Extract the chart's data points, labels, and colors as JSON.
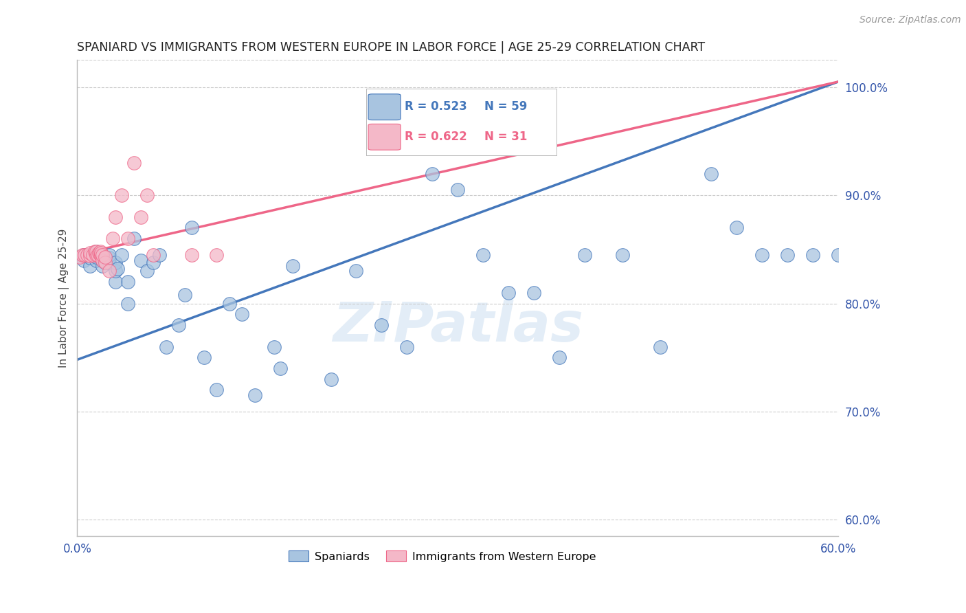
{
  "title": "SPANIARD VS IMMIGRANTS FROM WESTERN EUROPE IN LABOR FORCE | AGE 25-29 CORRELATION CHART",
  "source": "Source: ZipAtlas.com",
  "ylabel": "In Labor Force | Age 25-29",
  "xlim": [
    0.0,
    0.6
  ],
  "ylim": [
    0.585,
    1.025
  ],
  "xticks": [
    0.0,
    0.1,
    0.2,
    0.3,
    0.4,
    0.5,
    0.6
  ],
  "xticklabels": [
    "0.0%",
    "",
    "",
    "",
    "",
    "",
    "60.0%"
  ],
  "yticks_right": [
    0.6,
    0.7,
    0.8,
    0.9,
    1.0
  ],
  "yticklabels_right": [
    "60.0%",
    "70.0%",
    "80.0%",
    "90.0%",
    "100.0%"
  ],
  "blue_color": "#A8C4E0",
  "pink_color": "#F4B8C8",
  "blue_line_color": "#4477BB",
  "pink_line_color": "#EE6688",
  "watermark": "ZIPatlas",
  "blue_scatter_x": [
    0.005,
    0.005,
    0.01,
    0.01,
    0.012,
    0.015,
    0.015,
    0.015,
    0.015,
    0.02,
    0.02,
    0.022,
    0.022,
    0.025,
    0.025,
    0.025,
    0.03,
    0.03,
    0.03,
    0.032,
    0.035,
    0.04,
    0.04,
    0.045,
    0.05,
    0.055,
    0.06,
    0.065,
    0.07,
    0.08,
    0.085,
    0.09,
    0.1,
    0.11,
    0.12,
    0.13,
    0.14,
    0.155,
    0.16,
    0.17,
    0.2,
    0.22,
    0.24,
    0.26,
    0.28,
    0.3,
    0.32,
    0.34,
    0.36,
    0.38,
    0.4,
    0.43,
    0.46,
    0.5,
    0.52,
    0.54,
    0.56,
    0.58,
    0.6
  ],
  "blue_scatter_y": [
    0.84,
    0.845,
    0.835,
    0.842,
    0.845,
    0.84,
    0.843,
    0.845,
    0.848,
    0.835,
    0.84,
    0.838,
    0.843,
    0.838,
    0.842,
    0.845,
    0.82,
    0.83,
    0.838,
    0.832,
    0.845,
    0.8,
    0.82,
    0.86,
    0.84,
    0.83,
    0.838,
    0.845,
    0.76,
    0.78,
    0.808,
    0.87,
    0.75,
    0.72,
    0.8,
    0.79,
    0.715,
    0.76,
    0.74,
    0.835,
    0.73,
    0.83,
    0.78,
    0.76,
    0.92,
    0.905,
    0.845,
    0.81,
    0.81,
    0.75,
    0.845,
    0.845,
    0.76,
    0.92,
    0.87,
    0.845,
    0.845,
    0.845,
    0.845
  ],
  "pink_scatter_x": [
    0.002,
    0.004,
    0.006,
    0.008,
    0.01,
    0.01,
    0.012,
    0.014,
    0.015,
    0.015,
    0.016,
    0.017,
    0.018,
    0.018,
    0.019,
    0.019,
    0.02,
    0.02,
    0.022,
    0.022,
    0.025,
    0.028,
    0.03,
    0.035,
    0.04,
    0.045,
    0.05,
    0.055,
    0.06,
    0.09,
    0.11
  ],
  "pink_scatter_y": [
    0.843,
    0.845,
    0.845,
    0.845,
    0.844,
    0.847,
    0.845,
    0.848,
    0.845,
    0.848,
    0.845,
    0.847,
    0.845,
    0.848,
    0.845,
    0.847,
    0.84,
    0.845,
    0.838,
    0.843,
    0.83,
    0.86,
    0.88,
    0.9,
    0.86,
    0.93,
    0.88,
    0.9,
    0.845,
    0.845,
    0.845
  ],
  "blue_line_x0": 0.0,
  "blue_line_y0": 0.748,
  "blue_line_x1": 0.6,
  "blue_line_y1": 1.005,
  "pink_line_x0": 0.0,
  "pink_line_y0": 0.845,
  "pink_line_x1": 0.6,
  "pink_line_y1": 1.005
}
